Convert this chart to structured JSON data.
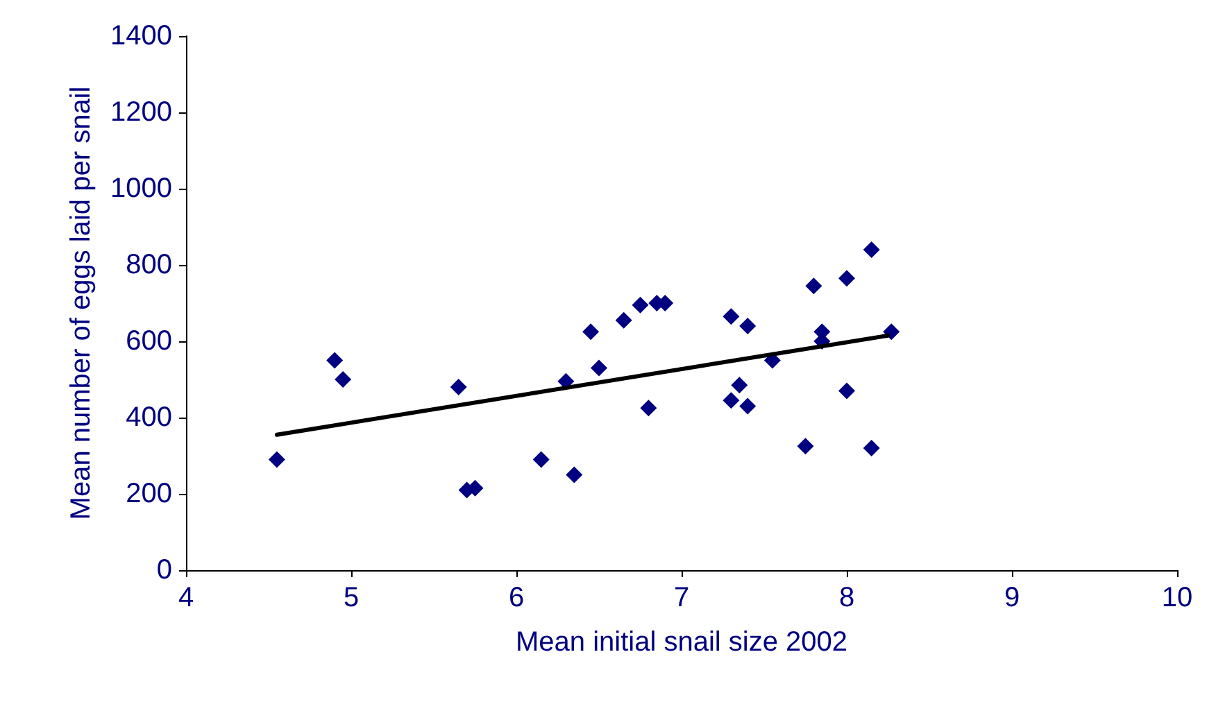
{
  "chart_data": {
    "type": "scatter",
    "xlabel": "Mean initial snail size 2002",
    "ylabel": "Mean number of eggs laid per snail",
    "xlim": [
      4,
      10
    ],
    "xticks": [
      4,
      5,
      6,
      7,
      8,
      9,
      10
    ],
    "ylim": [
      0,
      1400
    ],
    "yticks": [
      0,
      200,
      400,
      600,
      800,
      1000,
      1200,
      1400
    ],
    "grid": false,
    "series": [
      {
        "color": "#000080",
        "marker": "diamond",
        "x": [
          4.55,
          4.9,
          4.95,
          5.65,
          5.7,
          5.75,
          6.15,
          6.3,
          6.35,
          6.45,
          6.5,
          6.65,
          6.75,
          6.85,
          6.9,
          6.8,
          7.3,
          7.3,
          7.35,
          7.4,
          7.4,
          7.55,
          7.75,
          7.8,
          7.85,
          7.85,
          8.0,
          8.0,
          8.15,
          8.15,
          8.27
        ],
        "values": [
          290,
          550,
          500,
          480,
          210,
          215,
          290,
          495,
          250,
          625,
          530,
          655,
          695,
          700,
          700,
          425,
          665,
          445,
          485,
          640,
          430,
          550,
          325,
          745,
          625,
          600,
          765,
          470,
          840,
          320,
          625
        ]
      },
      {
        "type": "line",
        "color": "#000000",
        "marker": "none",
        "line_style": "solid",
        "x": [
          4.55,
          8.25
        ],
        "values": [
          355,
          615
        ]
      }
    ]
  }
}
